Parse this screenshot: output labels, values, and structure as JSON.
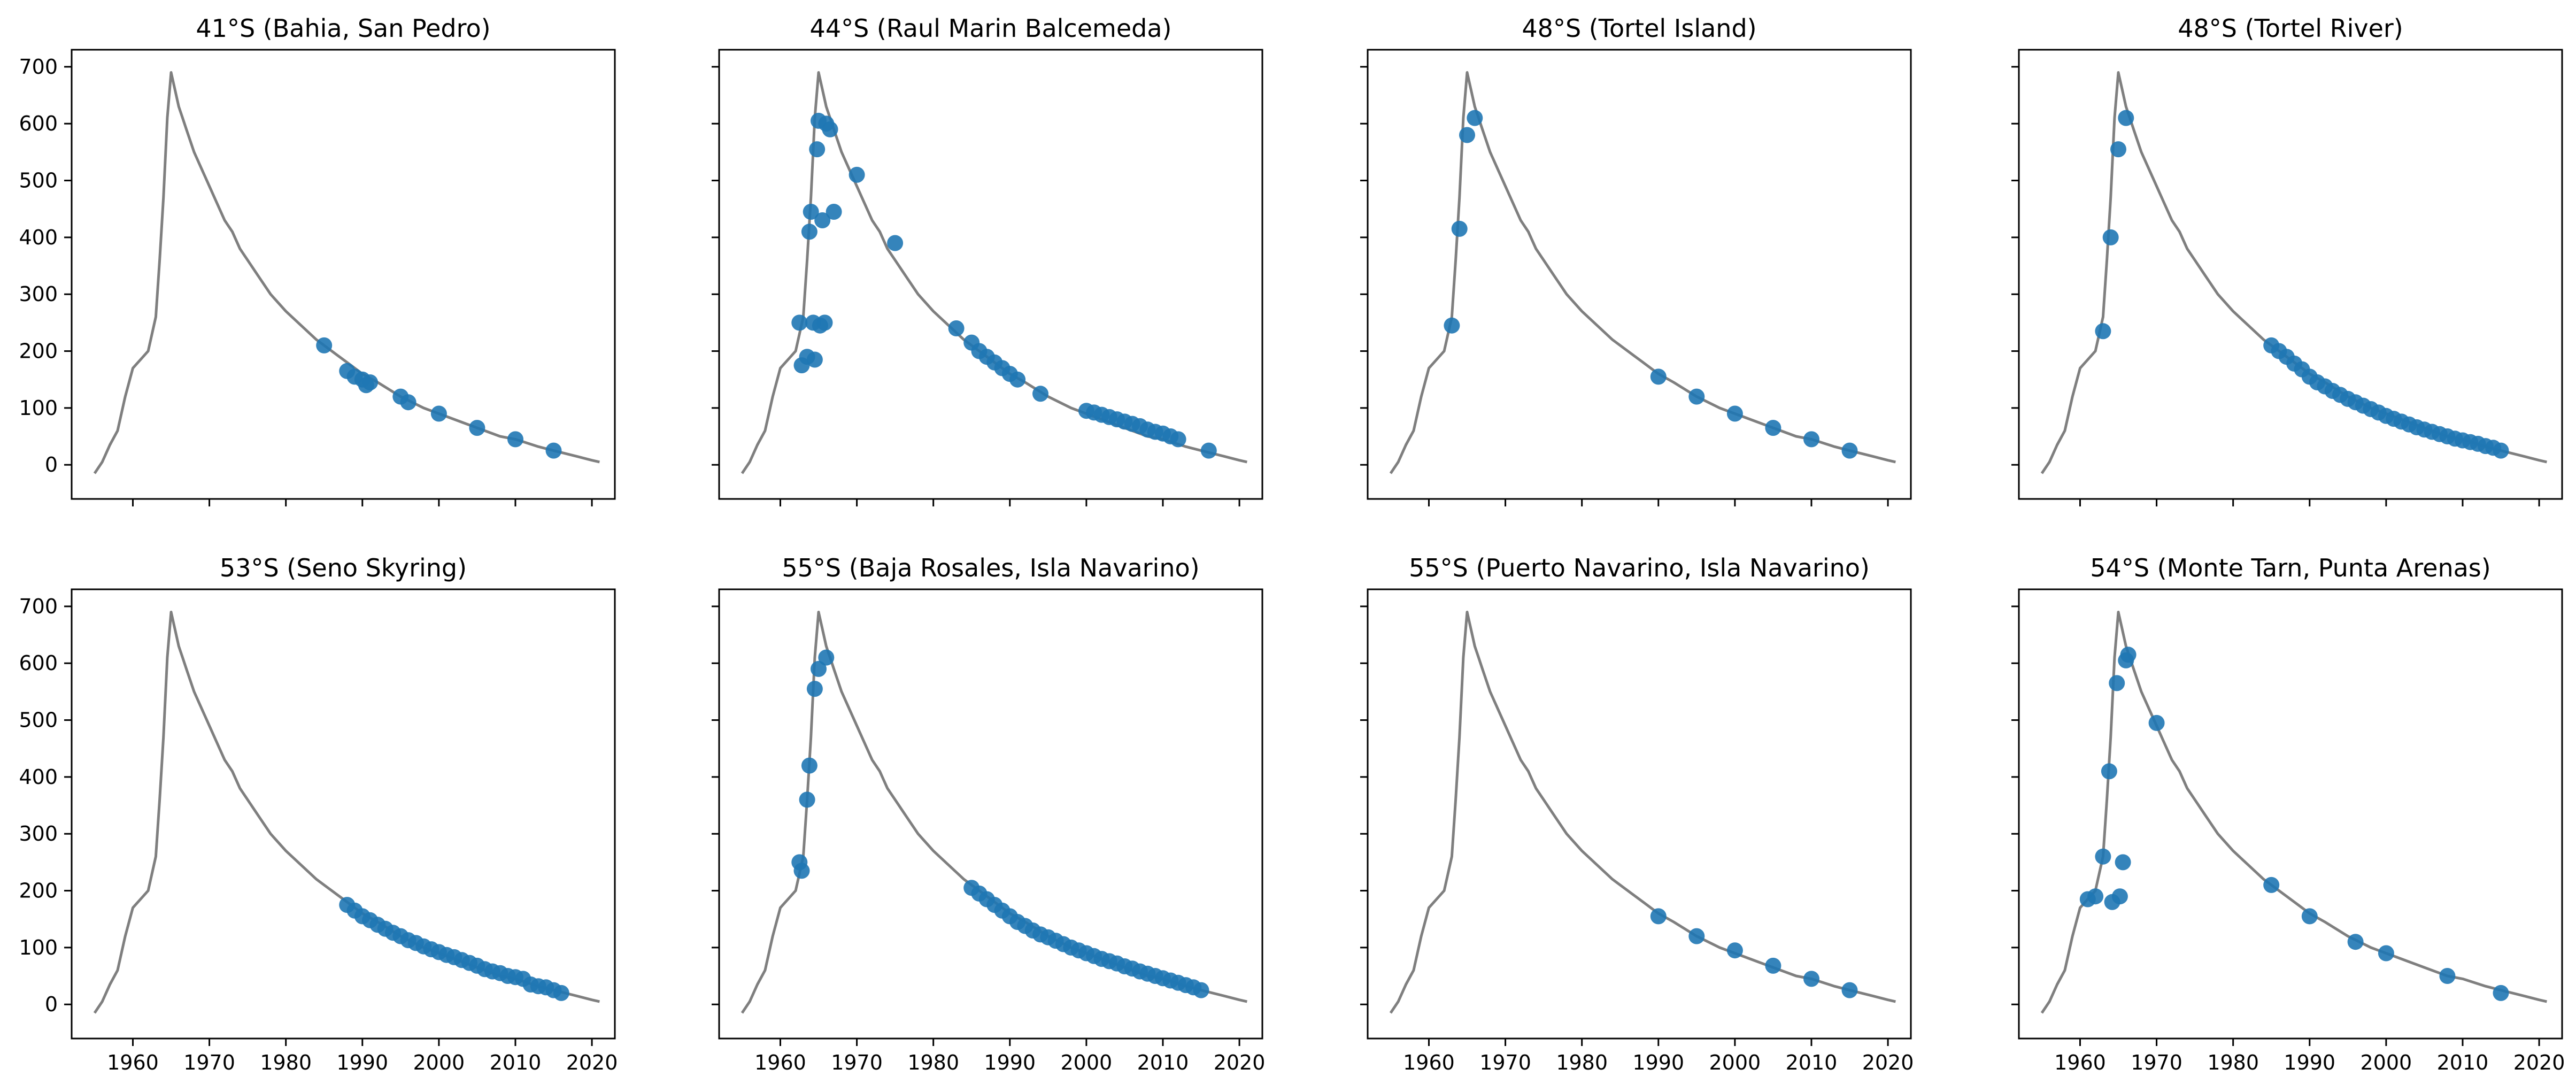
{
  "chart_data": {
    "type": "scatter",
    "layout": "2x4 grid, shared x and y axes",
    "xlim": [
      1952,
      2023
    ],
    "ylim": [
      -60,
      730
    ],
    "x_ticks": [
      1960,
      1970,
      1980,
      1990,
      2000,
      2010,
      2020
    ],
    "y_ticks": [
      0,
      100,
      200,
      300,
      400,
      500,
      600,
      700
    ],
    "grid": false,
    "legend": "none",
    "colors": {
      "reference_line": "#7f7f7f",
      "points": "#1f77b4"
    },
    "reference_line": {
      "description": "atmospheric record (same in every panel)",
      "x": [
        1955,
        1956,
        1957,
        1958,
        1959,
        1960,
        1961,
        1962,
        1963,
        1963.5,
        1964,
        1964.5,
        1965,
        1965.5,
        1966,
        1966.5,
        1967,
        1968,
        1969,
        1970,
        1971,
        1972,
        1973,
        1974,
        1975,
        1976,
        1977,
        1978,
        1980,
        1982,
        1984,
        1986,
        1988,
        1990,
        1992,
        1995,
        1998,
        2000,
        2003,
        2005,
        2008,
        2010,
        2013,
        2015,
        2018,
        2020,
        2021
      ],
      "y": [
        -15,
        5,
        35,
        60,
        120,
        170,
        185,
        200,
        260,
        360,
        470,
        610,
        690,
        660,
        630,
        610,
        590,
        550,
        520,
        490,
        460,
        430,
        410,
        380,
        360,
        340,
        320,
        300,
        270,
        245,
        220,
        200,
        180,
        160,
        145,
        120,
        100,
        90,
        75,
        65,
        50,
        45,
        32,
        25,
        15,
        8,
        5
      ]
    },
    "panels": [
      {
        "title": "41°S (Bahia, San Pedro)",
        "points_x": [
          1985,
          1988,
          1989,
          1990,
          1990.5,
          1991,
          1995,
          1996,
          2000,
          2005,
          2010,
          2015
        ],
        "points_y": [
          210,
          165,
          155,
          150,
          140,
          145,
          120,
          110,
          90,
          65,
          45,
          25
        ]
      },
      {
        "title": "44°S (Raul Marin Balcemeda)",
        "points_x": [
          1962.5,
          1962.8,
          1963.5,
          1963.8,
          1964,
          1964.3,
          1964.5,
          1964.8,
          1965,
          1965.2,
          1965.5,
          1965.8,
          1966,
          1966.5,
          1967,
          1970,
          1975,
          1983,
          1985,
          1986,
          1987,
          1988,
          1989,
          1990,
          1991,
          1994,
          2000,
          2001,
          2002,
          2003,
          2004,
          2005,
          2006,
          2007,
          2008,
          2009,
          2010,
          2011,
          2012,
          2016
        ],
        "points_y": [
          250,
          175,
          190,
          410,
          445,
          250,
          185,
          555,
          605,
          245,
          430,
          250,
          600,
          590,
          445,
          510,
          390,
          240,
          215,
          200,
          190,
          180,
          170,
          160,
          150,
          125,
          95,
          92,
          88,
          84,
          80,
          76,
          72,
          68,
          62,
          58,
          55,
          50,
          45,
          25
        ]
      },
      {
        "title": "48°S (Tortel Island)",
        "points_x": [
          1963,
          1964,
          1965,
          1966,
          1990,
          1995,
          2000,
          2005,
          2010,
          2015
        ],
        "points_y": [
          245,
          415,
          580,
          610,
          155,
          120,
          90,
          65,
          45,
          25
        ]
      },
      {
        "title": "48°S (Tortel River)",
        "points_x": [
          1963,
          1964,
          1965,
          1966,
          1985,
          1986,
          1987,
          1988,
          1989,
          1990,
          1991,
          1992,
          1993,
          1994,
          1995,
          1996,
          1997,
          1998,
          1999,
          2000,
          2001,
          2002,
          2003,
          2004,
          2005,
          2006,
          2007,
          2008,
          2009,
          2010,
          2011,
          2012,
          2013,
          2014,
          2015
        ],
        "points_y": [
          235,
          400,
          555,
          610,
          210,
          200,
          190,
          178,
          168,
          155,
          145,
          138,
          130,
          123,
          116,
          110,
          104,
          98,
          92,
          86,
          81,
          76,
          71,
          66,
          62,
          58,
          54,
          50,
          46,
          43,
          40,
          37,
          33,
          30,
          25
        ]
      },
      {
        "title": "53°S (Seno Skyring)",
        "points_x": [
          1988,
          1989,
          1990,
          1991,
          1992,
          1993,
          1994,
          1995,
          1996,
          1997,
          1998,
          1999,
          2000,
          2001,
          2002,
          2003,
          2004,
          2005,
          2006,
          2007,
          2008,
          2009,
          2010,
          2011,
          2012,
          2013,
          2014,
          2015,
          2016
        ],
        "points_y": [
          175,
          165,
          155,
          148,
          140,
          133,
          126,
          120,
          113,
          108,
          102,
          97,
          92,
          87,
          83,
          78,
          73,
          68,
          62,
          58,
          55,
          50,
          48,
          45,
          35,
          32,
          30,
          25,
          20
        ]
      },
      {
        "title": "55°S (Baja Rosales, Isla Navarino)",
        "points_x": [
          1962.5,
          1962.8,
          1963.5,
          1963.8,
          1964.5,
          1965,
          1966,
          1985,
          1986,
          1987,
          1988,
          1989,
          1990,
          1991,
          1992,
          1993,
          1994,
          1995,
          1996,
          1997,
          1998,
          1999,
          2000,
          2001,
          2002,
          2003,
          2004,
          2005,
          2006,
          2007,
          2008,
          2009,
          2010,
          2011,
          2012,
          2013,
          2014,
          2015
        ],
        "points_y": [
          250,
          235,
          360,
          420,
          555,
          590,
          610,
          205,
          195,
          185,
          175,
          165,
          155,
          145,
          138,
          130,
          123,
          118,
          112,
          106,
          100,
          95,
          90,
          85,
          80,
          76,
          72,
          67,
          63,
          58,
          54,
          50,
          46,
          42,
          38,
          34,
          30,
          25
        ]
      },
      {
        "title": "55°S (Puerto Navarino, Isla Navarino)",
        "points_x": [
          1990,
          1995,
          2000,
          2005,
          2010,
          2015
        ],
        "points_y": [
          155,
          120,
          95,
          68,
          45,
          25
        ]
      },
      {
        "title": "54°S (Monte Tarn, Punta Arenas)",
        "points_x": [
          1961,
          1962,
          1963,
          1963.8,
          1964.2,
          1964.8,
          1965.2,
          1965.6,
          1966,
          1966.3,
          1970,
          1985,
          1990,
          1996,
          2000,
          2008,
          2015
        ],
        "points_y": [
          185,
          190,
          260,
          410,
          180,
          565,
          190,
          250,
          605,
          615,
          495,
          210,
          155,
          110,
          90,
          50,
          20
        ]
      }
    ]
  }
}
